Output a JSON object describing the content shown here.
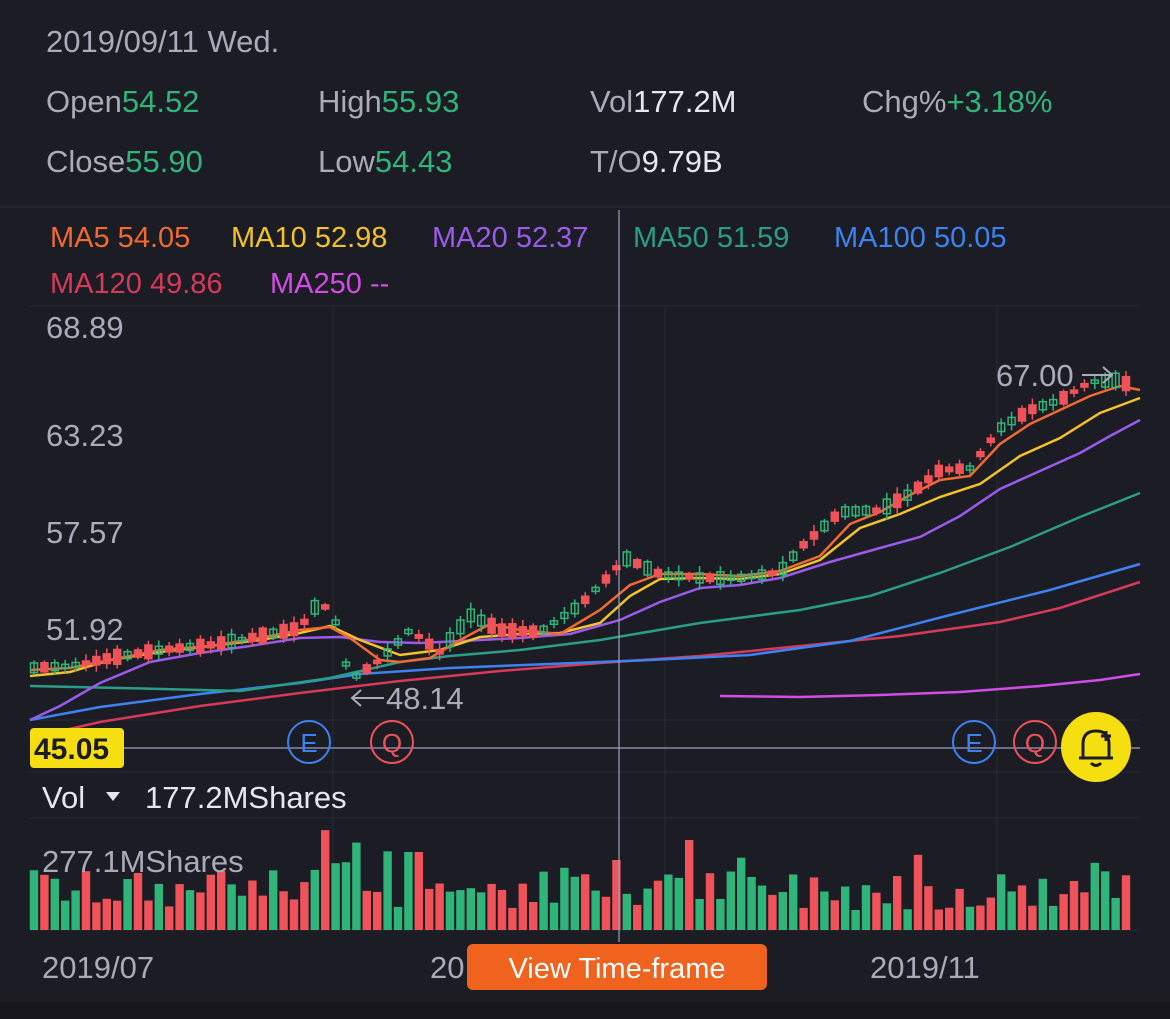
{
  "header": {
    "date": "2019/09/11 Wed.",
    "open_label": "Open",
    "open_value": "54.52",
    "high_label": "High",
    "high_value": "55.93",
    "vol_label": "Vol",
    "vol_value": "177.2M",
    "chg_label": "Chg%",
    "chg_value": "+3.18%",
    "close_label": "Close",
    "close_value": "55.90",
    "low_label": "Low",
    "low_value": "54.43",
    "to_label": "T/O",
    "to_value": "9.79B"
  },
  "ma_legend": [
    {
      "label": "MA5 54.05",
      "color": "#f06a32"
    },
    {
      "label": "MA10 52.98",
      "color": "#f2c22b"
    },
    {
      "label": "MA20 52.37",
      "color": "#9a5bea"
    },
    {
      "label": "MA50 51.59",
      "color": "#2a9d86"
    },
    {
      "label": "MA100 50.05",
      "color": "#3c82f0"
    },
    {
      "label": "MA120 49.86",
      "color": "#d63a5a"
    },
    {
      "label": "MA250 --",
      "color": "#d24ce6"
    }
  ],
  "price_axis": [
    "68.89",
    "63.23",
    "57.57",
    "51.92"
  ],
  "price_marker": {
    "current": "45.05"
  },
  "annotations": {
    "high": "67.00",
    "low": "48.14"
  },
  "events": {
    "earnings": "E",
    "quarter": "Q"
  },
  "volume": {
    "label": "Vol",
    "value": "177.2MShares",
    "max_label": "277.1MShares"
  },
  "x_axis": [
    "2019/07",
    "20",
    "2019/11"
  ],
  "time_frame_button": "View Time-frame",
  "colors": {
    "up": "#2fb479",
    "down": "#f0525a",
    "background": "#1c1c24",
    "accent": "#f5df10",
    "button": "#f0631f"
  },
  "icons": {
    "alert": "bell-plus-icon",
    "dropdown": "caret-down-icon"
  }
}
